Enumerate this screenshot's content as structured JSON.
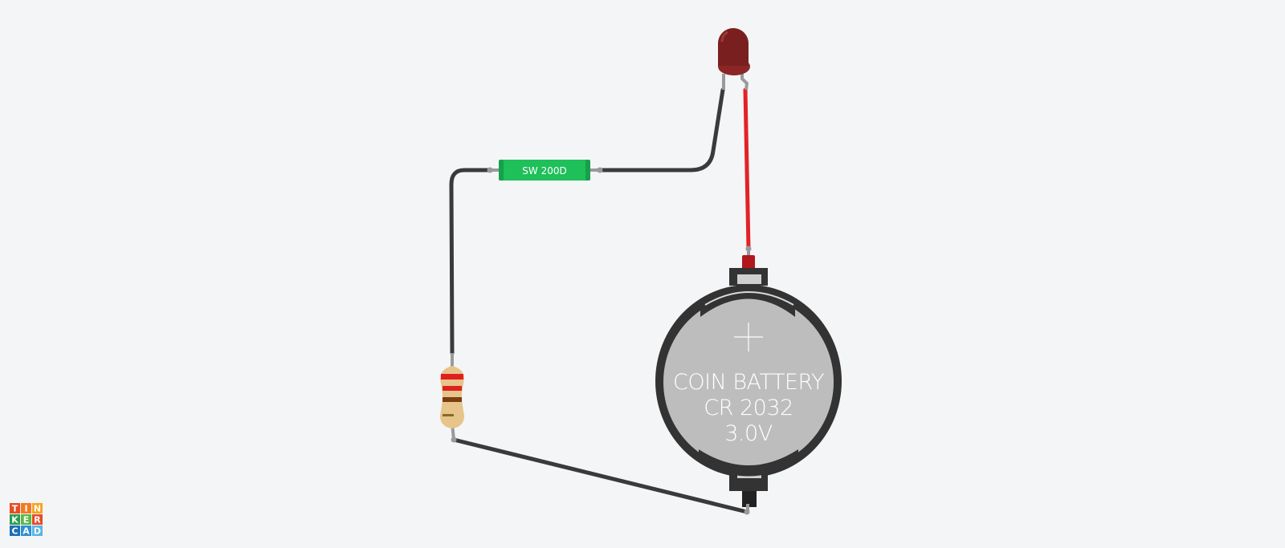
{
  "switch": {
    "label": "SW 200D"
  },
  "battery": {
    "line1": "COIN BATTERY",
    "line2": "CR 2032",
    "line3": "3.0V",
    "plus": "+"
  },
  "logo": {
    "letters": [
      "T",
      "I",
      "N",
      "K",
      "E",
      "R",
      "C",
      "A",
      "D"
    ],
    "colors": [
      "#e84a27",
      "#f47a20",
      "#f6a41c",
      "#2d9d4e",
      "#5cb849",
      "#e84a27",
      "#1f6fb6",
      "#2d8fd6",
      "#5ab4e5"
    ]
  },
  "colors": {
    "background": "#f4f5f7",
    "wire_black": "#3a3a3a",
    "wire_red": "#e32226",
    "led": "#7a1f1f",
    "switch": "#1fbf5a",
    "battery_holder": "#333333",
    "battery_cell": "#bdbdbd"
  },
  "resistor": {
    "bands": [
      "red",
      "red",
      "brown",
      "gold"
    ]
  }
}
